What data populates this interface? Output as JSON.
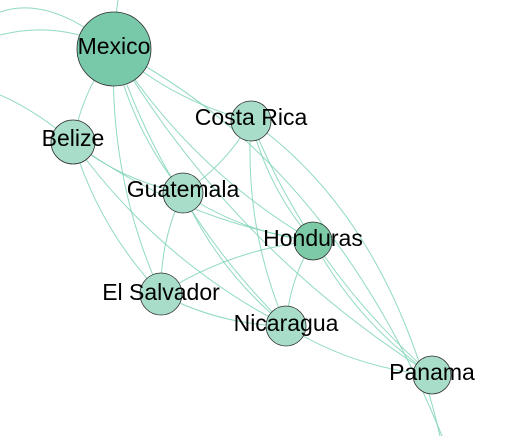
{
  "colors": {
    "edge": "#7ed3b4",
    "node_major": "#78c9aa",
    "node_mid": "#7ccaa6",
    "node_light": "#a7ddc9",
    "node_stroke": "#2f2f2f",
    "label": "#000000"
  },
  "network": {
    "nodes": [
      {
        "id": "mexico",
        "label": "Mexico",
        "tone": "node_major"
      },
      {
        "id": "costa-rica",
        "label": "Costa Rica",
        "tone": "node_light"
      },
      {
        "id": "belize",
        "label": "Belize",
        "tone": "node_light"
      },
      {
        "id": "guatemala",
        "label": "Guatemala",
        "tone": "node_light"
      },
      {
        "id": "honduras",
        "label": "Honduras",
        "tone": "node_mid"
      },
      {
        "id": "el-salvador",
        "label": "El Salvador",
        "tone": "node_light"
      },
      {
        "id": "nicaragua",
        "label": "Nicaragua",
        "tone": "node_light"
      },
      {
        "id": "panama",
        "label": "Panama",
        "tone": "node_light"
      }
    ],
    "edges": [
      [
        "mexico",
        "belize"
      ],
      [
        "mexico",
        "guatemala"
      ],
      [
        "mexico",
        "costa-rica"
      ],
      [
        "mexico",
        "honduras"
      ],
      [
        "mexico",
        "el-salvador"
      ],
      [
        "mexico",
        "nicaragua"
      ],
      [
        "mexico",
        "panama"
      ],
      [
        "belize",
        "guatemala"
      ],
      [
        "belize",
        "honduras"
      ],
      [
        "belize",
        "el-salvador"
      ],
      [
        "belize",
        "nicaragua"
      ],
      [
        "guatemala",
        "honduras"
      ],
      [
        "guatemala",
        "el-salvador"
      ],
      [
        "guatemala",
        "nicaragua"
      ],
      [
        "guatemala",
        "costa-rica"
      ],
      [
        "costa-rica",
        "honduras"
      ],
      [
        "costa-rica",
        "nicaragua"
      ],
      [
        "costa-rica",
        "panama"
      ],
      [
        "honduras",
        "el-salvador"
      ],
      [
        "honduras",
        "nicaragua"
      ],
      [
        "honduras",
        "panama"
      ],
      [
        "el-salvador",
        "nicaragua"
      ],
      [
        "nicaragua",
        "panama"
      ]
    ]
  }
}
